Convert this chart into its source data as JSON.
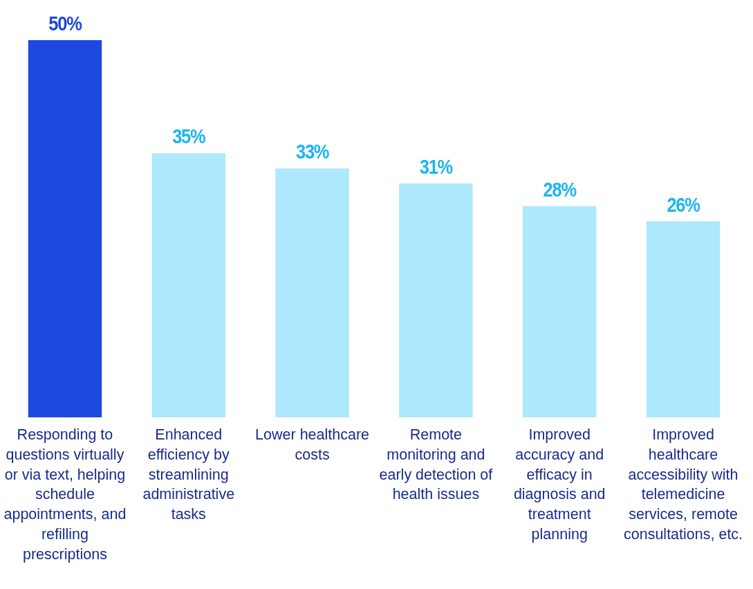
{
  "chart_data": {
    "type": "bar",
    "categories": [
      "Responding to questions virtually or via text, helping schedule appointments, and refilling prescriptions",
      "Enhanced efficiency by streamlining administrative tasks",
      "Lower healthcare costs",
      "Remote monitoring and early detection of health issues",
      "Improved accuracy and efficacy in diagnosis and treatment planning",
      "Improved healthcare accessibility with telemedicine services, remote consultations, etc."
    ],
    "values": [
      50,
      35,
      33,
      31,
      28,
      26
    ],
    "colors": [
      "#1f48e0",
      "#ade8fc",
      "#ade8fc",
      "#ade8fc",
      "#ade8fc",
      "#ade8fc"
    ],
    "ylim": [
      0,
      50
    ],
    "value_labels": [
      "50%",
      "35%",
      "33%",
      "31%",
      "28%",
      "26%"
    ]
  }
}
